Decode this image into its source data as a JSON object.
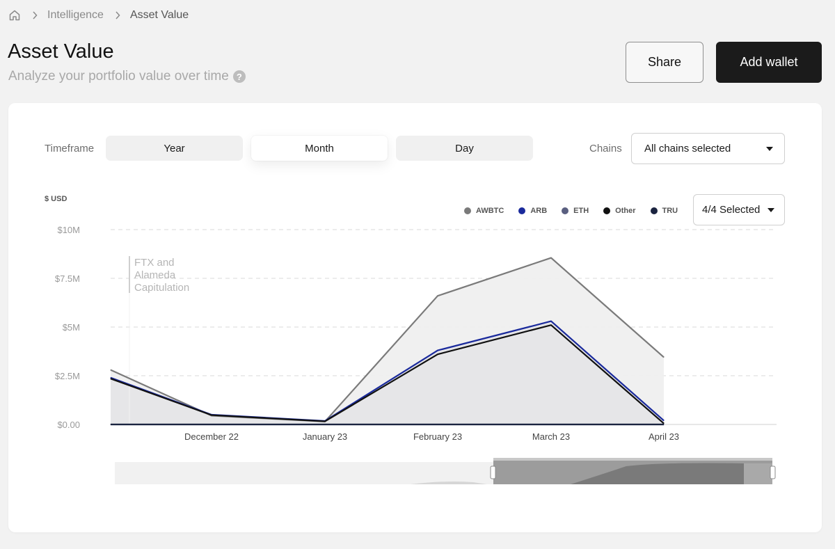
{
  "breadcrumb": {
    "items": [
      "Intelligence",
      "Asset Value"
    ]
  },
  "header": {
    "title": "Asset Value",
    "subtitle": "Analyze your portfolio value over time",
    "share_label": "Share",
    "add_wallet_label": "Add wallet"
  },
  "controls": {
    "timeframe_label": "Timeframe",
    "timeframes": [
      "Year",
      "Month",
      "Day"
    ],
    "selected_timeframe": "Month",
    "chains_label": "Chains",
    "chains_value": "All chains selected",
    "series_select_value": "4/4 Selected"
  },
  "colors": {
    "awbtc": "#7a7a7a",
    "arb": "#1a2a9c",
    "eth": "#5a5f80",
    "other": "#111111",
    "tru": "#1b2440"
  },
  "chart_data": {
    "type": "area",
    "y_unit_label": "$ USD",
    "y_tick_labels": [
      "$0.00",
      "$2.5M",
      "$5M",
      "$7.5M",
      "$10M"
    ],
    "ylim": [
      0,
      10000000
    ],
    "y_ticks": [
      0,
      2500000,
      5000000,
      7500000,
      10000000
    ],
    "x_tick_labels": [
      "December 22",
      "January 23",
      "February 23",
      "March 23",
      "April 23"
    ],
    "grid": true,
    "legend_position": "top-right",
    "annotation": {
      "lines": [
        "FTX and",
        "Alameda",
        "Capitulation"
      ]
    },
    "x": [
      "",
      "December 22",
      "January 23",
      "February 23",
      "March 23",
      "April 23"
    ],
    "series": [
      {
        "name": "AWBTC",
        "values": [
          2800000,
          450000,
          150000,
          6600000,
          8550000,
          3450000
        ]
      },
      {
        "name": "ARB",
        "values": [
          2400000,
          500000,
          180000,
          3800000,
          5300000,
          200000
        ]
      },
      {
        "name": "ETH",
        "values": [
          0,
          0,
          0,
          0,
          0,
          0
        ]
      },
      {
        "name": "Other",
        "values": [
          2350000,
          480000,
          160000,
          3600000,
          5100000,
          50000
        ]
      },
      {
        "name": "TRU",
        "values": [
          0,
          0,
          0,
          0,
          0,
          0
        ]
      }
    ]
  }
}
